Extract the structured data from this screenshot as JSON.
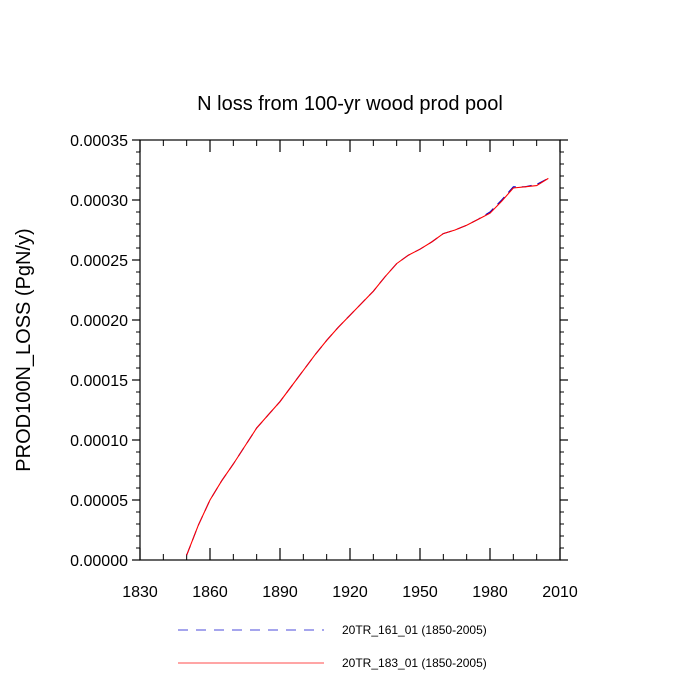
{
  "chart_data": {
    "type": "line",
    "title": "N loss from 100-yr wood prod pool",
    "ylabel": "PROD100N_LOSS  (PgN/y)",
    "xlabel": "",
    "xlim": [
      1830,
      2010
    ],
    "ylim": [
      0,
      0.00035
    ],
    "xticks": [
      "1830",
      "1860",
      "1890",
      "1920",
      "1950",
      "1980",
      "2010"
    ],
    "xtick_values": [
      1830,
      1860,
      1890,
      1920,
      1950,
      1980,
      2010
    ],
    "yticks": [
      "0.00000",
      "0.00005",
      "0.00010",
      "0.00015",
      "0.00020",
      "0.00025",
      "0.00030",
      "0.00035"
    ],
    "ytick_values": [
      0,
      5e-05,
      0.0001,
      0.00015,
      0.0002,
      0.00025,
      0.0003,
      0.00035
    ],
    "grid": false,
    "legend_position": "bottom",
    "x": [
      1850,
      1855,
      1860,
      1865,
      1870,
      1875,
      1880,
      1885,
      1890,
      1895,
      1900,
      1905,
      1910,
      1915,
      1920,
      1925,
      1930,
      1935,
      1940,
      1945,
      1950,
      1955,
      1960,
      1965,
      1970,
      1975,
      1980,
      1985,
      1990,
      1995,
      2000,
      2005
    ],
    "series": [
      {
        "name": "20TR_161_01 (1850-2005)",
        "color": "#0000cc",
        "dash": "dashed",
        "values": [
          4e-06,
          2.9e-05,
          5e-05,
          6.6e-05,
          8e-05,
          9.5e-05,
          0.00011,
          0.000121,
          0.000132,
          0.000145,
          0.000158,
          0.000171,
          0.000183,
          0.000194,
          0.000204,
          0.000214,
          0.000224,
          0.000236,
          0.000247,
          0.000254,
          0.000259,
          0.000265,
          0.000272,
          0.000275,
          0.000279,
          0.000284,
          0.00029,
          0.0003,
          0.000311,
          0.000311,
          0.000313,
          0.000318
        ]
      },
      {
        "name": "20TR_183_01 (1850-2005)",
        "color": "#ff0000",
        "dash": "solid",
        "values": [
          4e-06,
          2.9e-05,
          5e-05,
          6.6e-05,
          8e-05,
          9.5e-05,
          0.00011,
          0.000121,
          0.000132,
          0.000145,
          0.000158,
          0.000171,
          0.000183,
          0.000194,
          0.000204,
          0.000214,
          0.000224,
          0.000236,
          0.000247,
          0.000254,
          0.000259,
          0.000265,
          0.000272,
          0.000275,
          0.000279,
          0.000284,
          0.000289,
          0.000299,
          0.00031,
          0.000311,
          0.000312,
          0.000318
        ]
      }
    ]
  }
}
